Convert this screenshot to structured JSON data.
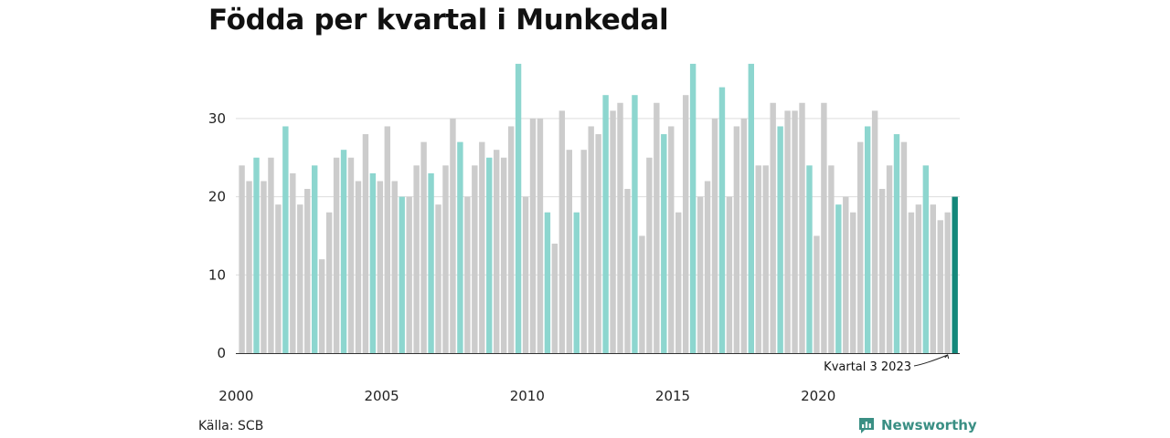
{
  "title": "Födda per kvartal i Munkedal",
  "source": "Källa: SCB",
  "brand": "Newsworthy",
  "annotation": "Kvartal 3 2023",
  "colors": {
    "normal": "#cccccc",
    "q3": "#8dd6cf",
    "latest": "#13877a",
    "brand": "#3a8f84"
  },
  "chart_data": {
    "type": "bar",
    "title": "Födda per kvartal i Munkedal",
    "xlabel": "",
    "ylabel": "",
    "ylim": [
      0,
      37
    ],
    "yticks": [
      0,
      10,
      20,
      30
    ],
    "xticks": [
      "2000",
      "2005",
      "2010",
      "2015",
      "2020"
    ],
    "grid": true,
    "highlight": "third quarter of each year",
    "values": [
      24,
      22,
      25,
      22,
      25,
      19,
      29,
      23,
      19,
      21,
      24,
      12,
      18,
      25,
      26,
      25,
      22,
      28,
      23,
      22,
      29,
      22,
      20,
      20,
      24,
      27,
      23,
      19,
      24,
      30,
      27,
      20,
      24,
      27,
      25,
      26,
      25,
      29,
      37,
      20,
      30,
      30,
      18,
      14,
      31,
      26,
      18,
      26,
      29,
      28,
      33,
      31,
      32,
      21,
      33,
      15,
      25,
      32,
      28,
      29,
      18,
      33,
      37,
      20,
      22,
      30,
      34,
      20,
      29,
      30,
      37,
      24,
      24,
      32,
      29,
      31,
      31,
      32,
      24,
      15,
      32,
      24,
      19,
      20,
      18,
      27,
      29,
      31,
      21,
      24,
      28,
      27,
      18,
      19,
      24,
      19,
      17,
      18,
      20
    ]
  }
}
